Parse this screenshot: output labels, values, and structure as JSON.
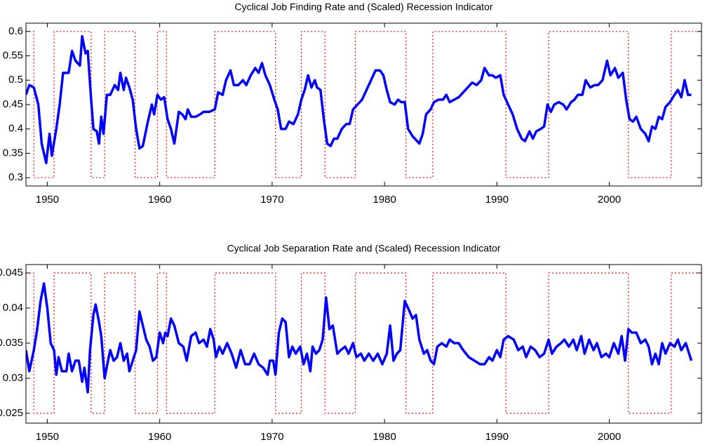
{
  "chart_data": [
    {
      "type": "line",
      "title": "Cyclical Job Finding Rate and (Scaled) Recession Indicator",
      "xlim": [
        1948.1,
        2008.2
      ],
      "xticks": [
        1950,
        1960,
        1970,
        1980,
        1990,
        2000
      ],
      "ylim": [
        0.283,
        0.617
      ],
      "yticks": [
        0.3,
        0.35,
        0.4,
        0.45,
        0.5,
        0.55,
        0.6
      ],
      "grid": false,
      "series": [
        {
          "color": "#ff0000",
          "linestyle": "dotted",
          "x": [
            1948.1,
            1948.8,
            1948.8,
            1950.6,
            1950.6,
            1953.9,
            1953.9,
            1955.1,
            1955.1,
            1957.8,
            1957.8,
            1959.8,
            1959.8,
            1960.6,
            1960.6,
            1964.9,
            1964.9,
            1970.3,
            1970.3,
            1972.6,
            1972.6,
            1974.7,
            1974.7,
            1977.4,
            1977.4,
            1981.9,
            1981.9,
            1984.3,
            1984.3,
            1990.8,
            1990.8,
            1994.6,
            1994.6,
            2001.7,
            2001.7,
            2005.5,
            2005.5,
            2008.2
          ],
          "values": [
            0.6,
            0.6,
            0.3,
            0.3,
            0.6,
            0.6,
            0.3,
            0.3,
            0.6,
            0.6,
            0.3,
            0.3,
            0.6,
            0.6,
            0.3,
            0.3,
            0.6,
            0.6,
            0.3,
            0.3,
            0.6,
            0.6,
            0.3,
            0.3,
            0.6,
            0.6,
            0.3,
            0.3,
            0.6,
            0.6,
            0.3,
            0.3,
            0.6,
            0.6,
            0.3,
            0.3,
            0.6,
            0.6
          ]
        },
        {
          "color": "#0000ff",
          "linestyle": "solid",
          "x": [
            1948.1,
            1948.4,
            1948.8,
            1949.2,
            1949.5,
            1949.9,
            1950.2,
            1950.4,
            1950.8,
            1951.1,
            1951.4,
            1951.9,
            1952.2,
            1952.5,
            1952.9,
            1953.1,
            1953.4,
            1953.6,
            1953.9,
            1954.1,
            1954.4,
            1954.6,
            1954.8,
            1955.0,
            1955.3,
            1955.6,
            1956.0,
            1956.3,
            1956.5,
            1956.8,
            1957.0,
            1957.3,
            1957.6,
            1957.9,
            1958.2,
            1958.5,
            1958.9,
            1959.3,
            1959.5,
            1959.8,
            1960.1,
            1960.4,
            1960.7,
            1961.0,
            1961.3,
            1961.7,
            1962.0,
            1962.3,
            1962.5,
            1962.8,
            1963.2,
            1963.6,
            1963.9,
            1964.4,
            1964.9,
            1965.2,
            1965.6,
            1965.9,
            1966.3,
            1966.6,
            1967.0,
            1967.4,
            1967.7,
            1968.1,
            1968.5,
            1968.8,
            1969.1,
            1969.4,
            1969.8,
            1970.2,
            1970.5,
            1970.8,
            1971.2,
            1971.5,
            1971.9,
            1972.3,
            1972.6,
            1972.9,
            1973.2,
            1973.5,
            1973.8,
            1974.0,
            1974.3,
            1974.6,
            1974.9,
            1975.2,
            1975.5,
            1975.8,
            1976.2,
            1976.6,
            1976.9,
            1977.2,
            1977.6,
            1978.0,
            1978.4,
            1978.8,
            1979.2,
            1979.6,
            1979.9,
            1980.2,
            1980.5,
            1980.9,
            1981.2,
            1981.5,
            1981.8,
            1982.1,
            1982.5,
            1982.9,
            1983.1,
            1983.4,
            1983.7,
            1984.1,
            1984.4,
            1984.8,
            1985.2,
            1985.5,
            1985.8,
            1986.2,
            1986.6,
            1987.0,
            1987.4,
            1987.8,
            1988.2,
            1988.6,
            1988.9,
            1989.3,
            1989.6,
            1989.9,
            1990.3,
            1990.6,
            1991.0,
            1991.4,
            1991.8,
            1992.2,
            1992.5,
            1992.9,
            1993.2,
            1993.5,
            1993.9,
            1994.2,
            1994.5,
            1994.8,
            1995.1,
            1995.5,
            1995.9,
            1996.2,
            1996.6,
            1996.9,
            1997.2,
            1997.6,
            1997.9,
            1998.3,
            1998.7,
            1999.0,
            1999.4,
            1999.8,
            2000.1,
            2000.5,
            2000.8,
            2001.2,
            2001.5,
            2001.8,
            2002.1,
            2002.4,
            2002.8,
            2003.2,
            2003.5,
            2003.8,
            2004.1,
            2004.4,
            2004.7,
            2005.0,
            2005.4,
            2005.8,
            2006.1,
            2006.4,
            2006.7,
            2007.0,
            2007.3
          ],
          "values": [
            0.47,
            0.49,
            0.485,
            0.45,
            0.37,
            0.33,
            0.39,
            0.345,
            0.4,
            0.45,
            0.515,
            0.515,
            0.56,
            0.54,
            0.53,
            0.59,
            0.555,
            0.56,
            0.46,
            0.4,
            0.395,
            0.37,
            0.425,
            0.39,
            0.47,
            0.47,
            0.49,
            0.48,
            0.515,
            0.48,
            0.505,
            0.485,
            0.46,
            0.4,
            0.36,
            0.365,
            0.41,
            0.45,
            0.43,
            0.47,
            0.46,
            0.465,
            0.42,
            0.4,
            0.37,
            0.435,
            0.43,
            0.42,
            0.44,
            0.425,
            0.425,
            0.43,
            0.435,
            0.435,
            0.44,
            0.475,
            0.47,
            0.5,
            0.52,
            0.49,
            0.49,
            0.5,
            0.49,
            0.51,
            0.525,
            0.515,
            0.535,
            0.51,
            0.49,
            0.46,
            0.44,
            0.4,
            0.4,
            0.415,
            0.41,
            0.43,
            0.46,
            0.48,
            0.51,
            0.485,
            0.5,
            0.485,
            0.48,
            0.42,
            0.37,
            0.365,
            0.38,
            0.38,
            0.4,
            0.41,
            0.41,
            0.44,
            0.45,
            0.46,
            0.48,
            0.5,
            0.52,
            0.52,
            0.51,
            0.48,
            0.455,
            0.45,
            0.46,
            0.455,
            0.455,
            0.4,
            0.385,
            0.375,
            0.37,
            0.39,
            0.43,
            0.44,
            0.455,
            0.46,
            0.46,
            0.47,
            0.455,
            0.46,
            0.465,
            0.475,
            0.485,
            0.495,
            0.49,
            0.5,
            0.525,
            0.51,
            0.51,
            0.505,
            0.51,
            0.47,
            0.45,
            0.43,
            0.4,
            0.38,
            0.375,
            0.395,
            0.38,
            0.395,
            0.4,
            0.405,
            0.45,
            0.435,
            0.45,
            0.455,
            0.45,
            0.44,
            0.455,
            0.46,
            0.47,
            0.47,
            0.5,
            0.485,
            0.49,
            0.49,
            0.5,
            0.54,
            0.51,
            0.525,
            0.505,
            0.515,
            0.46,
            0.42,
            0.415,
            0.425,
            0.4,
            0.39,
            0.375,
            0.405,
            0.4,
            0.425,
            0.42,
            0.445,
            0.455,
            0.47,
            0.48,
            0.465,
            0.5,
            0.47,
            0.47
          ]
        }
      ]
    },
    {
      "type": "line",
      "title": "Cyclical Job Separation Rate and (Scaled) Recession Indicator",
      "xlim": [
        1948.1,
        2008.2
      ],
      "xticks": [
        1950,
        1960,
        1970,
        1980,
        1990,
        2000
      ],
      "ylim": [
        0.0236,
        0.0462
      ],
      "yticks": [
        0.025,
        0.03,
        0.035,
        0.04,
        0.045
      ],
      "grid": false,
      "series": [
        {
          "color": "#ff0000",
          "linestyle": "dotted",
          "x": [
            1948.1,
            1948.8,
            1948.8,
            1950.6,
            1950.6,
            1953.9,
            1953.9,
            1955.1,
            1955.1,
            1957.8,
            1957.8,
            1959.8,
            1959.8,
            1960.6,
            1960.6,
            1964.9,
            1964.9,
            1970.3,
            1970.3,
            1972.6,
            1972.6,
            1974.7,
            1974.7,
            1977.4,
            1977.4,
            1981.9,
            1981.9,
            1984.3,
            1984.3,
            1990.8,
            1990.8,
            1994.6,
            1994.6,
            2001.7,
            2001.7,
            2005.5,
            2005.5,
            2008.2
          ],
          "values": [
            0.045,
            0.045,
            0.025,
            0.025,
            0.045,
            0.045,
            0.025,
            0.025,
            0.045,
            0.045,
            0.025,
            0.025,
            0.045,
            0.045,
            0.025,
            0.025,
            0.045,
            0.045,
            0.025,
            0.025,
            0.045,
            0.045,
            0.025,
            0.025,
            0.045,
            0.045,
            0.025,
            0.025,
            0.045,
            0.045,
            0.025,
            0.025,
            0.045,
            0.045,
            0.025,
            0.025,
            0.045,
            0.045
          ]
        },
        {
          "color": "#0000ff",
          "linestyle": "solid",
          "x": [
            1948.1,
            1948.4,
            1948.8,
            1949.1,
            1949.4,
            1949.7,
            1950.0,
            1950.3,
            1950.6,
            1950.8,
            1951.0,
            1951.3,
            1951.7,
            1951.9,
            1952.2,
            1952.5,
            1952.8,
            1953.1,
            1953.3,
            1953.6,
            1953.8,
            1954.1,
            1954.3,
            1954.6,
            1954.8,
            1955.1,
            1955.4,
            1955.6,
            1955.9,
            1956.2,
            1956.5,
            1956.8,
            1957.1,
            1957.3,
            1957.6,
            1957.9,
            1958.2,
            1958.5,
            1958.8,
            1959.1,
            1959.4,
            1959.7,
            1960.0,
            1960.3,
            1960.5,
            1960.7,
            1961.0,
            1961.3,
            1961.7,
            1962.1,
            1962.4,
            1962.8,
            1963.2,
            1963.5,
            1963.9,
            1964.2,
            1964.5,
            1964.8,
            1965.0,
            1965.3,
            1965.6,
            1966.0,
            1966.4,
            1966.8,
            1967.2,
            1967.6,
            1968.0,
            1968.4,
            1968.8,
            1969.2,
            1969.6,
            1969.8,
            1970.1,
            1970.3,
            1970.6,
            1970.9,
            1971.2,
            1971.5,
            1971.8,
            1972.1,
            1972.5,
            1972.8,
            1973.1,
            1973.4,
            1973.6,
            1973.9,
            1974.2,
            1974.5,
            1974.8,
            1975.1,
            1975.4,
            1975.8,
            1976.1,
            1976.5,
            1976.8,
            1977.2,
            1977.5,
            1977.9,
            1978.2,
            1978.6,
            1979.0,
            1979.4,
            1979.8,
            1980.2,
            1980.5,
            1980.8,
            1981.1,
            1981.4,
            1981.8,
            1982.1,
            1982.5,
            1982.8,
            1983.1,
            1983.5,
            1983.8,
            1984.1,
            1984.4,
            1984.7,
            1985.1,
            1985.5,
            1985.8,
            1986.2,
            1986.6,
            1987.0,
            1987.5,
            1988.0,
            1988.5,
            1988.9,
            1989.3,
            1989.6,
            1990.0,
            1990.3,
            1990.6,
            1991.0,
            1991.5,
            1991.9,
            1992.3,
            1992.6,
            1993.0,
            1993.4,
            1993.8,
            1994.2,
            1994.6,
            1994.9,
            1995.3,
            1995.7,
            1996.0,
            1996.4,
            1996.8,
            1997.1,
            1997.5,
            1997.8,
            1998.2,
            1998.6,
            1998.9,
            1999.3,
            1999.7,
            2000.0,
            2000.4,
            2000.8,
            2001.1,
            2001.4,
            2001.7,
            2002.0,
            2002.4,
            2002.8,
            2003.2,
            2003.5,
            2003.8,
            2004.1,
            2004.4,
            2004.7,
            2005.0,
            2005.4,
            2005.8,
            2006.1,
            2006.4,
            2006.8,
            2007.3
          ],
          "values": [
            0.034,
            0.031,
            0.034,
            0.037,
            0.041,
            0.0435,
            0.04,
            0.035,
            0.034,
            0.0305,
            0.033,
            0.031,
            0.031,
            0.0335,
            0.031,
            0.0325,
            0.0325,
            0.0295,
            0.0315,
            0.028,
            0.034,
            0.039,
            0.0405,
            0.038,
            0.036,
            0.03,
            0.0325,
            0.034,
            0.0325,
            0.033,
            0.035,
            0.0325,
            0.0335,
            0.031,
            0.0325,
            0.034,
            0.0395,
            0.0375,
            0.0355,
            0.0345,
            0.0325,
            0.033,
            0.0365,
            0.035,
            0.0365,
            0.036,
            0.0385,
            0.0375,
            0.035,
            0.0345,
            0.0325,
            0.036,
            0.0365,
            0.035,
            0.0355,
            0.0345,
            0.037,
            0.0355,
            0.033,
            0.0345,
            0.0335,
            0.035,
            0.0335,
            0.0315,
            0.034,
            0.032,
            0.032,
            0.0335,
            0.032,
            0.0315,
            0.0305,
            0.0325,
            0.0325,
            0.0305,
            0.0365,
            0.0385,
            0.038,
            0.033,
            0.0345,
            0.0335,
            0.0345,
            0.032,
            0.0335,
            0.031,
            0.0345,
            0.0335,
            0.034,
            0.0355,
            0.0415,
            0.037,
            0.0375,
            0.0335,
            0.034,
            0.0345,
            0.0335,
            0.035,
            0.033,
            0.0335,
            0.0325,
            0.0335,
            0.0325,
            0.0335,
            0.032,
            0.0335,
            0.0375,
            0.0325,
            0.0335,
            0.034,
            0.041,
            0.04,
            0.0385,
            0.039,
            0.0355,
            0.0335,
            0.034,
            0.0325,
            0.032,
            0.0345,
            0.035,
            0.0345,
            0.0355,
            0.035,
            0.035,
            0.034,
            0.033,
            0.0325,
            0.032,
            0.032,
            0.033,
            0.0325,
            0.034,
            0.033,
            0.0355,
            0.036,
            0.0355,
            0.034,
            0.0345,
            0.033,
            0.0345,
            0.034,
            0.033,
            0.0335,
            0.0355,
            0.0335,
            0.0345,
            0.035,
            0.0355,
            0.0345,
            0.0355,
            0.034,
            0.036,
            0.0335,
            0.0355,
            0.034,
            0.035,
            0.033,
            0.0335,
            0.033,
            0.035,
            0.0335,
            0.036,
            0.0325,
            0.037,
            0.0365,
            0.0365,
            0.035,
            0.0355,
            0.0345,
            0.032,
            0.0335,
            0.032,
            0.035,
            0.0335,
            0.035,
            0.0345,
            0.0355,
            0.034,
            0.035,
            0.0325
          ]
        }
      ]
    }
  ]
}
